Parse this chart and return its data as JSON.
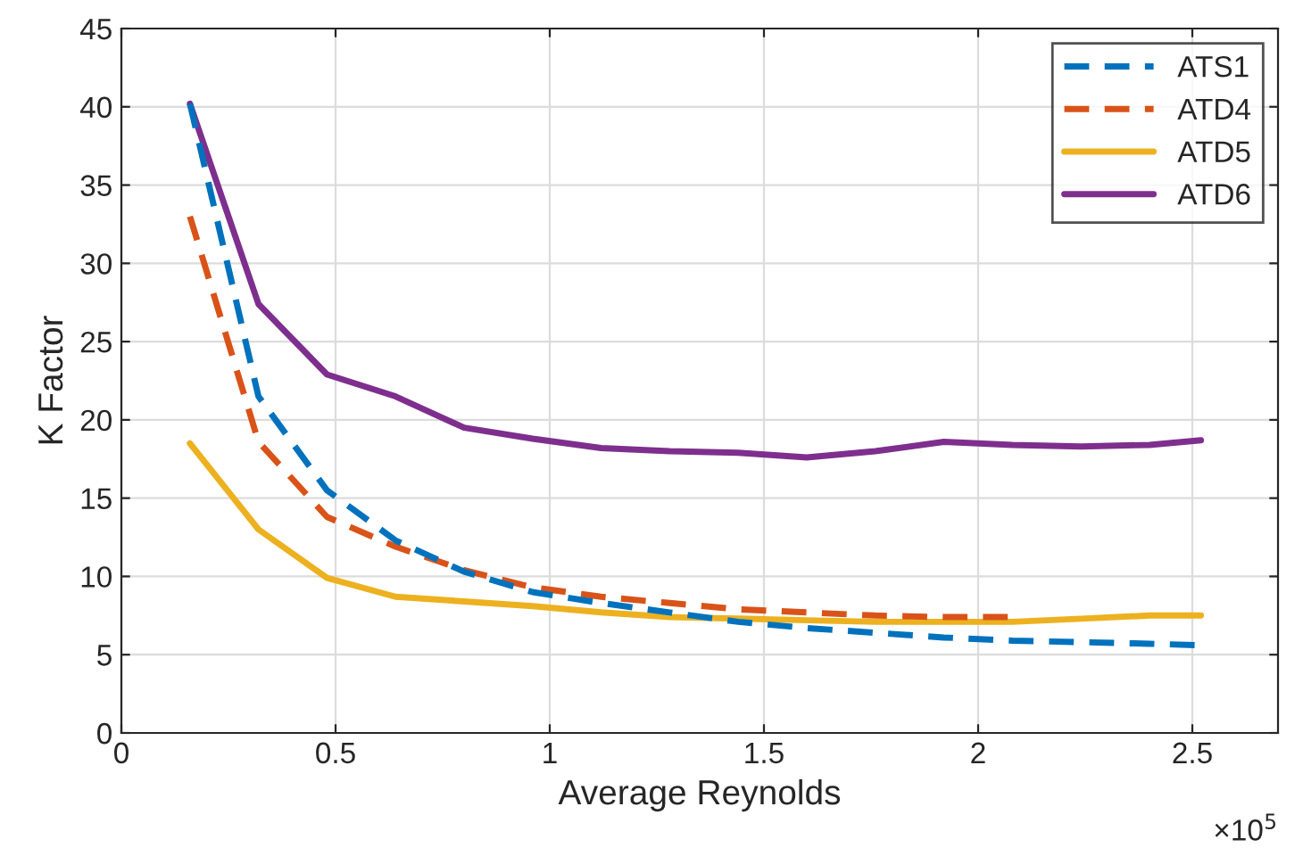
{
  "chart_data": {
    "type": "line",
    "xlabel": "Average Reynolds",
    "ylabel": "K Factor",
    "x": [
      0.16,
      0.32,
      0.48,
      0.64,
      0.8,
      0.96,
      1.12,
      1.28,
      1.44,
      1.6,
      1.76,
      1.92,
      2.08,
      2.24,
      2.4,
      2.52
    ],
    "series": [
      {
        "name": "ATS1",
        "color": "#0072bd",
        "line_style": "dashed",
        "values": [
          40.2,
          21.5,
          15.5,
          12.3,
          10.3,
          9.0,
          8.3,
          7.7,
          7.1,
          6.7,
          6.4,
          6.1,
          5.9,
          5.8,
          5.7,
          5.6
        ]
      },
      {
        "name": "ATD4",
        "color": "#d95319",
        "line_style": "dashed",
        "values": [
          33.0,
          18.6,
          13.8,
          11.9,
          10.4,
          9.3,
          8.7,
          8.3,
          7.9,
          7.7,
          7.5,
          7.4,
          7.4,
          null,
          null,
          null
        ]
      },
      {
        "name": "ATD5",
        "color": "#edb120",
        "line_style": "solid",
        "values": [
          18.5,
          13.0,
          9.9,
          8.7,
          8.4,
          8.1,
          7.7,
          7.4,
          7.3,
          7.2,
          7.1,
          7.1,
          7.1,
          7.3,
          7.5,
          7.5
        ]
      },
      {
        "name": "ATD6",
        "color": "#7e2f8e",
        "line_style": "solid",
        "values": [
          40.2,
          27.4,
          22.9,
          21.5,
          19.5,
          18.8,
          18.2,
          18.0,
          17.9,
          17.6,
          18.0,
          18.6,
          18.4,
          18.3,
          18.4,
          18.7
        ]
      }
    ],
    "xlim": [
      0,
      2.7
    ],
    "xticks": [
      0,
      0.5,
      1,
      1.5,
      2,
      2.5
    ],
    "ylim": [
      0,
      45
    ],
    "yticks": [
      0,
      5,
      10,
      15,
      20,
      25,
      30,
      35,
      40,
      45
    ],
    "annotations": [
      "×10$^{5}$"
    ],
    "grid": true,
    "legend": "top right",
    "marker": "none"
  }
}
